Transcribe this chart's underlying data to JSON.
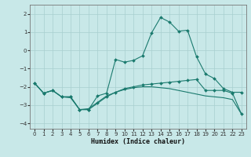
{
  "xlabel": "Humidex (Indice chaleur)",
  "bg_color": "#c8e8e8",
  "grid_color": "#a8cfcf",
  "line_color": "#1a7a6e",
  "xlim": [
    -0.5,
    23.5
  ],
  "ylim": [
    -4.3,
    2.5
  ],
  "yticks": [
    -4,
    -3,
    -2,
    -1,
    0,
    1,
    2
  ],
  "xticks": [
    0,
    1,
    2,
    3,
    4,
    5,
    6,
    7,
    8,
    9,
    10,
    11,
    12,
    13,
    14,
    15,
    16,
    17,
    18,
    19,
    20,
    21,
    22,
    23
  ],
  "line1_x": [
    0,
    1,
    2,
    3,
    4,
    5,
    6,
    7,
    8,
    9,
    10,
    11,
    12,
    13,
    14,
    15,
    16,
    17,
    18,
    19,
    20,
    21,
    22,
    23
  ],
  "line1_y": [
    -1.8,
    -2.35,
    -2.2,
    -2.55,
    -2.55,
    -3.25,
    -3.25,
    -2.5,
    -2.35,
    -0.5,
    -0.65,
    -0.55,
    -0.3,
    0.95,
    1.8,
    1.55,
    1.05,
    1.1,
    -0.35,
    -1.3,
    -1.55,
    -2.1,
    -2.3,
    -2.3
  ],
  "line2_x": [
    0,
    1,
    2,
    3,
    4,
    5,
    6,
    7,
    8,
    9,
    10,
    11,
    12,
    13,
    14,
    15,
    16,
    17,
    18,
    19,
    20,
    21,
    22,
    23
  ],
  "line2_y": [
    -1.8,
    -2.35,
    -2.2,
    -2.55,
    -2.55,
    -3.25,
    -3.25,
    -2.9,
    -2.55,
    -2.3,
    -2.1,
    -2.0,
    -1.9,
    -1.85,
    -1.8,
    -1.75,
    -1.7,
    -1.65,
    -1.6,
    -2.2,
    -2.2,
    -2.2,
    -2.35,
    -3.5
  ],
  "line3_x": [
    0,
    1,
    2,
    3,
    4,
    5,
    6,
    7,
    8,
    9,
    10,
    11,
    12,
    13,
    14,
    15,
    16,
    17,
    18,
    19,
    20,
    21,
    22,
    23
  ],
  "line3_y": [
    -1.8,
    -2.35,
    -2.2,
    -2.55,
    -2.6,
    -3.25,
    -3.2,
    -2.85,
    -2.5,
    -2.3,
    -2.15,
    -2.05,
    -2.0,
    -2.0,
    -2.05,
    -2.1,
    -2.2,
    -2.3,
    -2.4,
    -2.5,
    -2.55,
    -2.6,
    -2.7,
    -3.5
  ]
}
